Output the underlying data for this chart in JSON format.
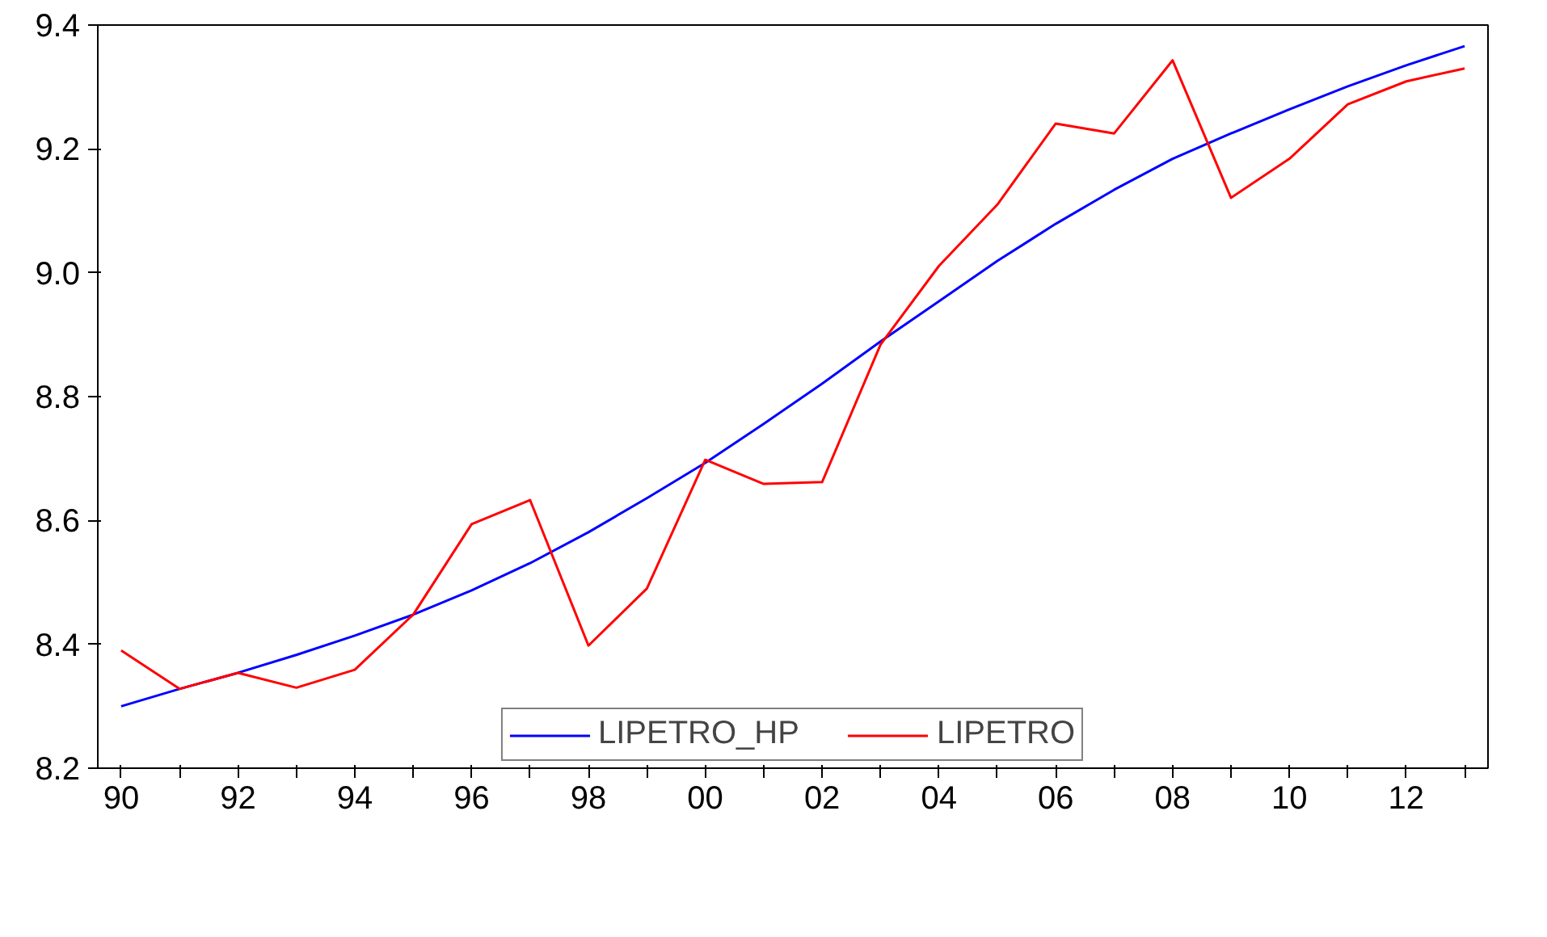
{
  "chart_data": {
    "type": "line",
    "categories": [
      "90",
      null,
      "92",
      null,
      "94",
      null,
      "96",
      null,
      "98",
      null,
      "00",
      null,
      "02",
      null,
      "04",
      null,
      "06",
      null,
      "08",
      null,
      "10",
      null,
      "12",
      null
    ],
    "series": [
      {
        "name": "LIPETRO_HP",
        "color": "#0000ff",
        "values": [
          8.3,
          8.328,
          8.354,
          8.383,
          8.414,
          8.448,
          8.487,
          8.531,
          8.581,
          8.636,
          8.693,
          8.756,
          8.821,
          8.889,
          8.954,
          9.019,
          9.079,
          9.134,
          9.184,
          9.225,
          9.264,
          9.301,
          9.335,
          9.366
        ]
      },
      {
        "name": "LIPETRO",
        "color": "#ff0000",
        "values": [
          8.39,
          8.328,
          8.354,
          8.33,
          8.359,
          8.448,
          8.594,
          8.633,
          8.398,
          8.49,
          8.698,
          8.659,
          8.662,
          8.884,
          9.011,
          9.11,
          9.241,
          9.225,
          9.343,
          9.121,
          9.184,
          9.272,
          9.309,
          9.33
        ]
      }
    ],
    "ylim": [
      8.2,
      9.4
    ],
    "yticks": [
      8.2,
      8.4,
      8.6,
      8.8,
      {
        "value": 9.0,
        "label": "9.0"
      },
      9.2,
      9.4
    ],
    "grid": false,
    "legend": "bottom",
    "marker": "none",
    "line_style": "solid"
  }
}
